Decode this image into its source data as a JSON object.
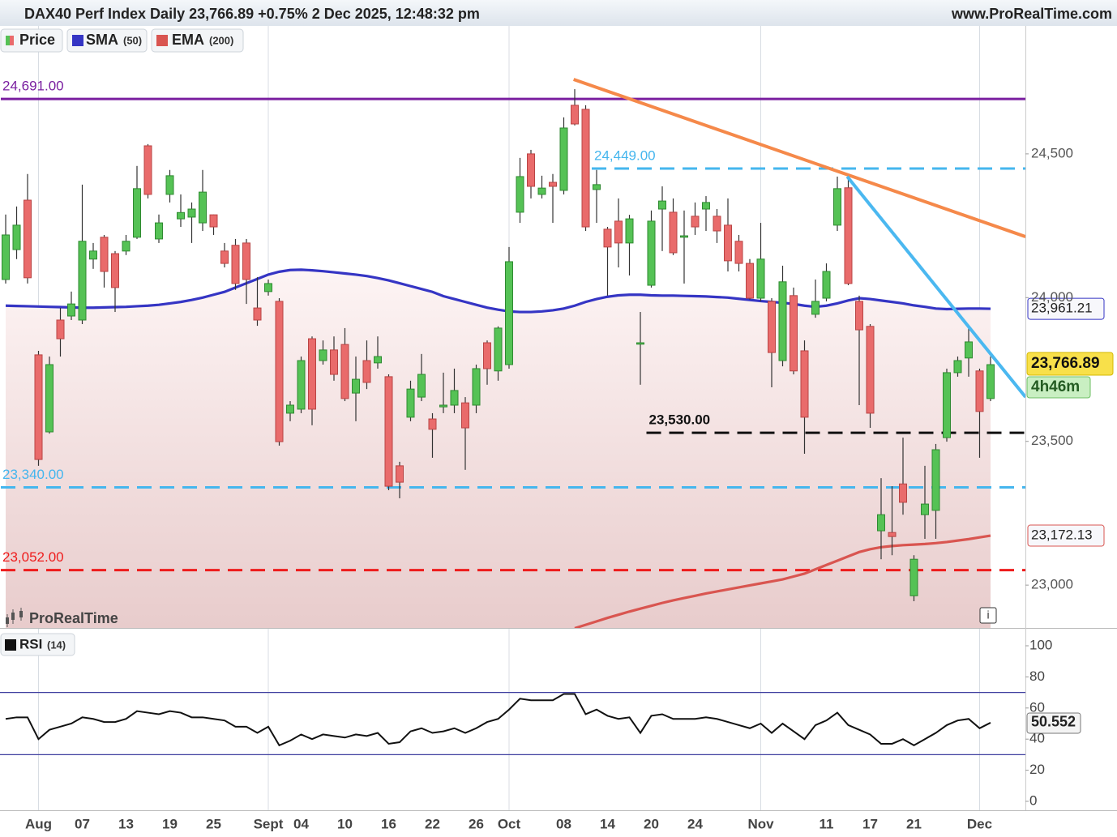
{
  "header": {
    "title": "DAX40 Perf Index Daily 23,766.89 +0.75% 2 Dec 2025, 12:48:32 pm",
    "site": "www.ProRealTime.com"
  },
  "legend": [
    {
      "name": "Price"
    },
    {
      "name": "SMA",
      "param": "(50)"
    },
    {
      "name": "EMA",
      "param": "(200)"
    }
  ],
  "watermark": "ProRealTime",
  "chart_data": [
    {
      "type": "candlestick",
      "categories": [
        null,
        null,
        null,
        "Aug",
        null,
        null,
        null,
        "07",
        null,
        null,
        null,
        "13",
        null,
        null,
        null,
        "19",
        null,
        null,
        null,
        "25",
        null,
        null,
        null,
        null,
        "Sept",
        null,
        null,
        "04",
        null,
        null,
        null,
        "10",
        null,
        null,
        null,
        "16",
        null,
        null,
        null,
        "22",
        null,
        null,
        null,
        "26",
        null,
        null,
        "Oct",
        null,
        null,
        null,
        null,
        "08",
        null,
        null,
        null,
        "14",
        null,
        null,
        null,
        "20",
        null,
        null,
        null,
        "24",
        null,
        null,
        null,
        null,
        null,
        "Nov",
        null,
        null,
        null,
        null,
        null,
        "11",
        null,
        null,
        null,
        "17",
        null,
        null,
        null,
        "21",
        null,
        null,
        null,
        null,
        null,
        "Dec",
        null
      ],
      "candles": [
        [
          24063,
          24289,
          24049,
          24218
        ],
        [
          24167,
          24317,
          24134,
          24252
        ],
        [
          24339,
          24430,
          24049,
          24069
        ],
        [
          23801,
          23815,
          23415,
          23437
        ],
        [
          23533,
          23795,
          23527,
          23767
        ],
        [
          23922,
          23964,
          23795,
          23857
        ],
        [
          23936,
          24021,
          23922,
          23978
        ],
        [
          23922,
          24393,
          23908,
          24196
        ],
        [
          24134,
          24190,
          24100,
          24162
        ],
        [
          24210,
          24218,
          24035,
          24091
        ],
        [
          24153,
          24162,
          23950,
          24035
        ],
        [
          24162,
          24218,
          24148,
          24196
        ],
        [
          24210,
          24458,
          24204,
          24379
        ],
        [
          24528,
          24534,
          24345,
          24359
        ],
        [
          24204,
          24289,
          24190,
          24260
        ],
        [
          24359,
          24444,
          24331,
          24424
        ],
        [
          24274,
          24359,
          24246,
          24296
        ],
        [
          24280,
          24331,
          24190,
          24308
        ],
        [
          24260,
          24444,
          24232,
          24367
        ],
        [
          24288,
          24289,
          24218,
          24246
        ],
        [
          24162,
          24190,
          24105,
          24119
        ],
        [
          24182,
          24204,
          24027,
          24049
        ],
        [
          24190,
          24204,
          23978,
          24063
        ],
        [
          23964,
          24071,
          23902,
          23922
        ],
        [
          24021,
          24063,
          24007,
          24049
        ],
        [
          23987,
          23998,
          23485,
          23499
        ],
        [
          23598,
          23640,
          23570,
          23626
        ],
        [
          23612,
          23795,
          23598,
          23781
        ],
        [
          23857,
          23865,
          23556,
          23612
        ],
        [
          23781,
          23851,
          23767,
          23818
        ],
        [
          23818,
          23865,
          23711,
          23733
        ],
        [
          23837,
          23894,
          23640,
          23649
        ],
        [
          23668,
          23795,
          23570,
          23716
        ],
        [
          23781,
          23851,
          23682,
          23705
        ],
        [
          23773,
          23865,
          23753,
          23795
        ],
        [
          23725,
          23733,
          23330,
          23344
        ],
        [
          23415,
          23429,
          23302,
          23358
        ],
        [
          23584,
          23711,
          23570,
          23682
        ],
        [
          23654,
          23804,
          23640,
          23733
        ],
        [
          23578,
          23598,
          23443,
          23542
        ],
        [
          23620,
          23739,
          23598,
          23626
        ],
        [
          23626,
          23753,
          23598,
          23677
        ],
        [
          23634,
          23654,
          23401,
          23547
        ],
        [
          23626,
          23767,
          23598,
          23753
        ],
        [
          23843,
          23851,
          23697,
          23753
        ],
        [
          23745,
          23900,
          23711,
          23894
        ],
        [
          23767,
          24176,
          23753,
          24125
        ],
        [
          24297,
          24486,
          24260,
          24421
        ],
        [
          24500,
          24514,
          24345,
          24387
        ],
        [
          24359,
          24424,
          24345,
          24381
        ],
        [
          24401,
          24430,
          24260,
          24387
        ],
        [
          24373,
          24627,
          24359,
          24590
        ],
        [
          24669,
          24725,
          24599,
          24604
        ],
        [
          24655,
          24669,
          24232,
          24246
        ],
        [
          24376,
          24444,
          24260,
          24393
        ],
        [
          24238,
          24246,
          24007,
          24176
        ],
        [
          24266,
          24345,
          24105,
          24190
        ],
        [
          24190,
          24288,
          24077,
          24274
        ],
        [
          23838,
          23950,
          23697,
          23843
        ],
        [
          24043,
          24303,
          24035,
          24266
        ],
        [
          24308,
          24387,
          24162,
          24336
        ],
        [
          24297,
          24345,
          24148,
          24156
        ],
        [
          24210,
          24303,
          24049,
          24215
        ],
        [
          24283,
          24331,
          24218,
          24246
        ],
        [
          24308,
          24353,
          24232,
          24331
        ],
        [
          24283,
          24308,
          24190,
          24232
        ],
        [
          24252,
          24345,
          24091,
          24128
        ],
        [
          24196,
          24218,
          24091,
          24119
        ],
        [
          24119,
          24134,
          23993,
          23998
        ],
        [
          23998,
          24260,
          23987,
          24134
        ],
        [
          23987,
          23998,
          23688,
          23809
        ],
        [
          23781,
          24111,
          23761,
          24055
        ],
        [
          24007,
          24035,
          23733,
          23745
        ],
        [
          23815,
          23851,
          23457,
          23584
        ],
        [
          23942,
          24063,
          23930,
          23987
        ],
        [
          23998,
          24119,
          23987,
          24091
        ],
        [
          24252,
          24421,
          24232,
          24379
        ],
        [
          24382,
          24421,
          24043,
          24049
        ],
        [
          23987,
          24007,
          23626,
          23888
        ],
        [
          23900,
          23908,
          23547,
          23598
        ],
        [
          23189,
          23372,
          23090,
          23245
        ],
        [
          23183,
          23344,
          23104,
          23169
        ],
        [
          23352,
          23513,
          23245,
          23288
        ],
        [
          22963,
          23104,
          22944,
          23090
        ],
        [
          23245,
          23415,
          23161,
          23282
        ],
        [
          23260,
          23491,
          23161,
          23471
        ],
        [
          23513,
          23753,
          23499,
          23739
        ],
        [
          23739,
          23795,
          23725,
          23781
        ],
        [
          23790,
          23894,
          23725,
          23846
        ],
        [
          23745,
          23753,
          23443,
          23604
        ],
        [
          23649,
          23795,
          23640,
          23766.89
        ]
      ],
      "up_color": "#55c255",
      "down_color": "#e96b6b",
      "series": [
        {
          "name": "SMA",
          "color": "#3535c4",
          "last_label": "23,961.21",
          "values": [
            23972,
            23971,
            23970,
            23969,
            23968,
            23967,
            23966,
            23965,
            23965,
            23966,
            23967,
            23968,
            23970,
            23972,
            23975,
            23980,
            23985,
            23992,
            24000,
            24010,
            24020,
            24035,
            24050,
            24065,
            24080,
            24090,
            24096,
            24097,
            24095,
            24092,
            24088,
            24084,
            24080,
            24075,
            24068,
            24060,
            24050,
            24040,
            24030,
            24020,
            24005,
            23995,
            23985,
            23975,
            23965,
            23958,
            23952,
            23950,
            23950,
            23952,
            23956,
            23962,
            23972,
            23985,
            23995,
            24003,
            24008,
            24010,
            24010,
            24008,
            24007,
            24007,
            24006,
            24005,
            24004,
            24002,
            24000,
            23996,
            23992,
            23988,
            23985,
            23982,
            23978,
            23972,
            23968,
            23972,
            23980,
            23990,
            23998,
            23995,
            23990,
            23985,
            23980,
            23973,
            23968,
            23962,
            23960,
            23961,
            23962,
            23962,
            23961.21
          ]
        },
        {
          "name": "EMA",
          "color": "#d95550",
          "last_label": "23,172.13",
          "values": [
            null,
            null,
            null,
            null,
            null,
            null,
            null,
            null,
            null,
            null,
            null,
            null,
            null,
            null,
            null,
            null,
            null,
            null,
            null,
            null,
            null,
            null,
            null,
            null,
            null,
            null,
            null,
            null,
            null,
            null,
            null,
            null,
            null,
            null,
            null,
            null,
            null,
            null,
            null,
            null,
            null,
            null,
            null,
            null,
            null,
            null,
            null,
            null,
            null,
            null,
            null,
            null,
            22850,
            22862,
            22874,
            22886,
            22897,
            22908,
            22918,
            22928,
            22938,
            22947,
            22955,
            22963,
            22971,
            22978,
            22985,
            22992,
            22999,
            23006,
            23013,
            23020,
            23030,
            23040,
            23055,
            23070,
            23085,
            23100,
            23115,
            23125,
            23132,
            23136,
            23139,
            23141,
            23143,
            23146,
            23150,
            23155,
            23160,
            23166,
            23172.13
          ]
        }
      ],
      "ylim": [
        22851,
        24945
      ],
      "yticks": [
        {
          "value": 23000,
          "label": "23,000"
        },
        {
          "value": 23500,
          "label": "23,500"
        },
        {
          "value": 24000,
          "label": "24,000"
        },
        {
          "value": 24500,
          "label": "24,500"
        }
      ],
      "levels": [
        {
          "value": 24691,
          "label": "24,691.00",
          "color": "#7a1fa0",
          "dashed": false,
          "from": 0
        },
        {
          "value": 24449,
          "label": "24,449.00",
          "color": "#45b6ee",
          "dashed": true,
          "from": 54
        },
        {
          "value": 23530,
          "label": "23,530.00",
          "color": "#111111",
          "dashed": true,
          "from": 59
        },
        {
          "value": 23340,
          "label": "23,340.00",
          "color": "#45b6ee",
          "dashed": true,
          "from": 0
        },
        {
          "value": 23052,
          "label": "23,052.00",
          "color": "#ee1c1c",
          "dashed": true,
          "from": 0
        }
      ],
      "trendlines": [
        {
          "color": "#f5894a",
          "points": [
            [
              51.9,
              24759
            ],
            [
              93.2,
              24212
            ]
          ]
        },
        {
          "color": "#4bb8f0",
          "points": [
            [
              76.9,
              24421
            ],
            [
              93.2,
              23654
            ]
          ]
        }
      ],
      "price_label": {
        "value": 23766.89,
        "label": "23,766.89"
      },
      "countdown": "4h46m"
    },
    {
      "type": "line",
      "name": "RSI",
      "param": "(14)",
      "color": "#111111",
      "values": [
        53,
        54,
        54,
        40,
        46,
        48,
        50,
        54,
        53,
        51,
        51,
        53,
        58,
        57,
        56,
        58,
        57,
        54,
        54,
        53,
        52,
        48,
        48,
        44,
        48,
        36,
        39,
        43,
        40,
        43,
        42,
        41,
        43,
        42,
        44,
        37,
        38,
        45,
        47,
        44,
        45,
        47,
        44,
        47,
        51,
        53,
        59,
        66,
        65,
        65,
        65,
        69,
        69,
        56,
        59,
        55,
        53,
        54,
        44,
        55,
        56,
        53,
        53,
        53,
        54,
        53,
        51,
        49,
        47,
        50,
        44,
        50,
        45,
        40,
        49,
        52,
        57,
        49,
        46,
        43,
        37,
        37,
        40,
        36,
        40,
        44,
        49,
        52,
        53,
        47,
        50.552
      ],
      "last_label": "50.552",
      "ylim": [
        0,
        100
      ],
      "yticks": [
        0,
        20,
        40,
        60,
        80,
        100
      ],
      "levels": [
        70,
        30
      ],
      "level_color": "#3f3f9f"
    }
  ]
}
